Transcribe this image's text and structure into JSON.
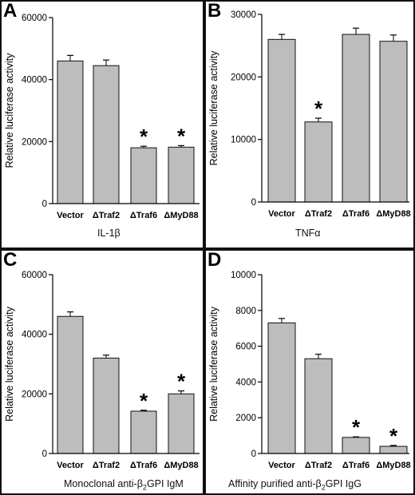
{
  "chart_data": [
    {
      "type": "bar",
      "panel_label": "A",
      "categories": [
        "Vector",
        "ΔTraf2",
        "ΔTraf6",
        "ΔMyD88"
      ],
      "values": [
        46000,
        44500,
        18000,
        18200
      ],
      "errors": [
        1800,
        1800,
        500,
        500
      ],
      "significant": [
        false,
        false,
        true,
        true
      ],
      "ylabel": "Relative luciferase activity",
      "condition": "IL-1β",
      "yticks": [
        0,
        20000,
        40000,
        60000
      ],
      "ylim": [
        0,
        60000
      ],
      "bar_color": "#bdbdbd",
      "grid": false
    },
    {
      "type": "bar",
      "panel_label": "B",
      "categories": [
        "Vector",
        "ΔTraf2",
        "ΔTraf6",
        "ΔMyD88"
      ],
      "values": [
        26000,
        12800,
        26800,
        25700
      ],
      "errors": [
        800,
        600,
        1000,
        1000
      ],
      "significant": [
        false,
        true,
        false,
        false
      ],
      "ylabel": "Relative luciferase activity",
      "condition": "TNFα",
      "yticks": [
        0,
        10000,
        20000,
        30000
      ],
      "ylim": [
        0,
        30000
      ],
      "bar_color": "#bdbdbd",
      "grid": false
    },
    {
      "type": "bar",
      "panel_label": "C",
      "categories": [
        "Vector",
        "ΔTraf2",
        "ΔTraf6",
        "ΔMyD88"
      ],
      "values": [
        46000,
        32000,
        14200,
        20000
      ],
      "errors": [
        1500,
        1000,
        300,
        1000
      ],
      "significant": [
        false,
        false,
        true,
        true
      ],
      "ylabel": "Relative luciferase activity",
      "condition_prefix": "Monoclonal anti-β",
      "condition_sub": "2",
      "condition_suffix": "GPI IgM",
      "yticks": [
        0,
        20000,
        40000,
        60000
      ],
      "ylim": [
        0,
        60000
      ],
      "bar_color": "#bdbdbd",
      "grid": false
    },
    {
      "type": "bar",
      "panel_label": "D",
      "categories": [
        "Vector",
        "ΔTraf2",
        "ΔTraf6",
        "ΔMyD88"
      ],
      "values": [
        7300,
        5300,
        900,
        400
      ],
      "errors": [
        250,
        250,
        30,
        50
      ],
      "significant": [
        false,
        false,
        true,
        true
      ],
      "ylabel": "Relative luciferase activity",
      "condition_prefix": "Affinity purified anti-β",
      "condition_sub": "2",
      "condition_suffix": "GPI IgG",
      "yticks": [
        0,
        2000,
        4000,
        6000,
        8000,
        10000
      ],
      "ylim": [
        0,
        10000
      ],
      "bar_color": "#bdbdbd",
      "grid": false
    }
  ]
}
